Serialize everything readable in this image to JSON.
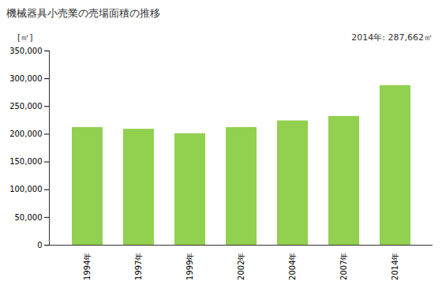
{
  "chart_data": {
    "type": "bar",
    "title": "機械器具小売業の売場面積の推移",
    "y_label": "[㎡]",
    "annotation": "2014年: 287,662㎡",
    "categories": [
      "1994年",
      "1997年",
      "1999年",
      "2002年",
      "2004年",
      "2007年",
      "2014年"
    ],
    "values": [
      212000,
      209000,
      201000,
      212000,
      224000,
      232000,
      287662
    ],
    "color": "#92d050",
    "ylim": [
      0,
      350000
    ],
    "yticks": [
      0,
      {
        "value": 50000,
        "label": "50,000"
      },
      {
        "value": 100000,
        "label": "100,000"
      },
      {
        "value": 150000,
        "label": "150,000"
      },
      {
        "value": 200000,
        "label": "200,000"
      },
      {
        "value": 250000,
        "label": "250,000"
      },
      {
        "value": 300000,
        "label": "300,000"
      },
      {
        "value": 350000,
        "label": "350,000"
      }
    ],
    "grid": false
  }
}
